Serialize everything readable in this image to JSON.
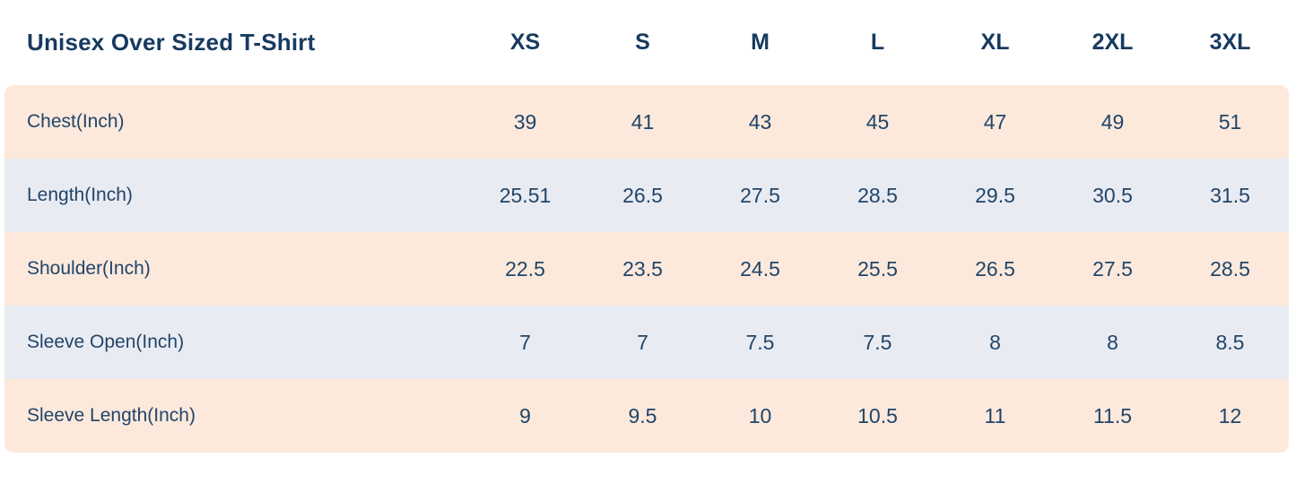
{
  "title": "Unisex Over Sized T-Shirt",
  "colors": {
    "background": "#FFFFFF",
    "row_peach": "#FCE9DC",
    "row_blue_gray": "#E9EBF2",
    "text_navy": "#1C4166"
  },
  "chart_data": {
    "type": "table",
    "title": "Unisex Over Sized T-Shirt",
    "columns": [
      "XS",
      "S",
      "M",
      "L",
      "XL",
      "2XL",
      "3XL"
    ],
    "rows": [
      {
        "label": "Chest(Inch)",
        "values": [
          "39",
          "41",
          "43",
          "45",
          "47",
          "49",
          "51"
        ]
      },
      {
        "label": "Length(Inch)",
        "values": [
          "25.51",
          "26.5",
          "27.5",
          "28.5",
          "29.5",
          "30.5",
          "31.5"
        ]
      },
      {
        "label": "Shoulder(Inch)",
        "values": [
          "22.5",
          "23.5",
          "24.5",
          "25.5",
          "26.5",
          "27.5",
          "28.5"
        ]
      },
      {
        "label": "Sleeve Open(Inch)",
        "values": [
          "7",
          "7",
          "7.5",
          "7.5",
          "8",
          "8",
          "8.5"
        ]
      },
      {
        "label": "Sleeve Length(Inch)",
        "values": [
          "9",
          "9.5",
          "10",
          "10.5",
          "11",
          "11.5",
          "12"
        ]
      }
    ],
    "layout": {
      "striped": true,
      "header_background": "#FFFFFF",
      "grid": false
    }
  }
}
